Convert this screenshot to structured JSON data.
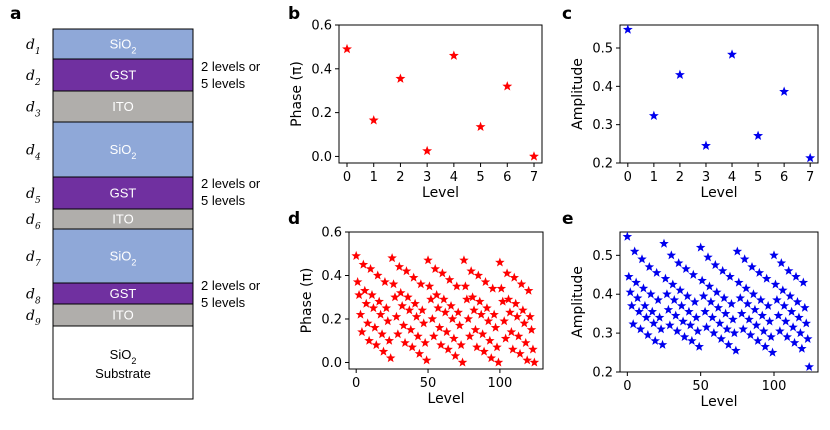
{
  "panels": {
    "a": "a",
    "b": "b",
    "c": "c",
    "d": "d",
    "e": "e"
  },
  "stack": {
    "layers": [
      {
        "d": "d",
        "sub": "1",
        "name": "SiO",
        "name_sub": "2",
        "color": "#8fa8d8",
        "text_color": "#ffffff"
      },
      {
        "d": "d",
        "sub": "2",
        "name": "GST",
        "name_sub": "",
        "color": "#7030a0",
        "text_color": "#ffffff"
      },
      {
        "d": "d",
        "sub": "3",
        "name": "ITO",
        "name_sub": "",
        "color": "#b0aeab",
        "text_color": "#ffffff"
      },
      {
        "d": "d",
        "sub": "4",
        "name": "SiO",
        "name_sub": "2",
        "color": "#8fa8d8",
        "text_color": "#ffffff"
      },
      {
        "d": "d",
        "sub": "5",
        "name": "GST",
        "name_sub": "",
        "color": "#7030a0",
        "text_color": "#ffffff"
      },
      {
        "d": "d",
        "sub": "6",
        "name": "ITO",
        "name_sub": "",
        "color": "#b0aeab",
        "text_color": "#ffffff"
      },
      {
        "d": "d",
        "sub": "7",
        "name": "SiO",
        "name_sub": "2",
        "color": "#8fa8d8",
        "text_color": "#ffffff"
      },
      {
        "d": "d",
        "sub": "8",
        "name": "GST",
        "name_sub": "",
        "color": "#7030a0",
        "text_color": "#ffffff"
      },
      {
        "d": "d",
        "sub": "9",
        "name": "ITO",
        "name_sub": "",
        "color": "#b0aeab",
        "text_color": "#ffffff"
      }
    ],
    "substrate": {
      "line1": "SiO",
      "line1_sub": "2",
      "line2": "Substrate"
    },
    "notes": [
      "2 levels or",
      "5 levels"
    ]
  },
  "chart_data": [
    {
      "id": "b",
      "type": "scatter",
      "marker": "star",
      "color": "#ff0000",
      "xlabel": "Level",
      "ylabel": "Phase (π)",
      "xlim": [
        -0.3,
        7.3
      ],
      "ylim": [
        -0.03,
        0.6
      ],
      "xticks": [
        0,
        1,
        2,
        3,
        4,
        5,
        6,
        7
      ],
      "yticks": [
        0.0,
        0.2,
        0.4,
        0.6
      ],
      "ytick_labels": [
        "0.0",
        "0.2",
        "0.4",
        "0.6"
      ],
      "x": [
        0,
        1,
        2,
        3,
        4,
        5,
        6,
        7
      ],
      "y": [
        0.49,
        0.165,
        0.355,
        0.025,
        0.46,
        0.135,
        0.32,
        0.0
      ]
    },
    {
      "id": "c",
      "type": "scatter",
      "marker": "star",
      "color": "#0000ee",
      "xlabel": "Level",
      "ylabel": "Amplitude",
      "xlim": [
        -0.3,
        7.3
      ],
      "ylim": [
        0.2,
        0.56
      ],
      "xticks": [
        0,
        1,
        2,
        3,
        4,
        5,
        6,
        7
      ],
      "yticks": [
        0.2,
        0.3,
        0.4,
        0.5
      ],
      "ytick_labels": [
        "0.2",
        "0.3",
        "0.4",
        "0.5"
      ],
      "x": [
        0,
        1,
        2,
        3,
        4,
        5,
        6,
        7
      ],
      "y": [
        0.548,
        0.323,
        0.43,
        0.245,
        0.483,
        0.271,
        0.386,
        0.213
      ]
    },
    {
      "id": "d",
      "type": "scatter",
      "marker": "star",
      "color": "#ff0000",
      "xlabel": "Level",
      "ylabel": "Phase (π)",
      "xlim": [
        -5,
        130
      ],
      "ylim": [
        -0.03,
        0.6
      ],
      "xticks": [
        0,
        50,
        100
      ],
      "yticks": [
        0.0,
        0.2,
        0.4,
        0.6
      ],
      "ytick_labels": [
        "0.0",
        "0.2",
        "0.4",
        "0.6"
      ],
      "x": [
        0,
        1,
        2,
        3,
        4,
        5,
        6,
        7,
        8,
        9,
        10,
        11,
        12,
        13,
        14,
        15,
        16,
        17,
        18,
        19,
        20,
        21,
        22,
        23,
        24,
        25,
        26,
        27,
        28,
        29,
        30,
        31,
        32,
        33,
        34,
        35,
        36,
        37,
        38,
        39,
        40,
        41,
        42,
        43,
        44,
        45,
        46,
        47,
        48,
        49,
        50,
        51,
        52,
        53,
        54,
        55,
        56,
        57,
        58,
        59,
        60,
        61,
        62,
        63,
        64,
        65,
        66,
        67,
        68,
        69,
        70,
        71,
        72,
        73,
        74,
        75,
        76,
        77,
        78,
        79,
        80,
        81,
        82,
        83,
        84,
        85,
        86,
        87,
        88,
        89,
        90,
        91,
        92,
        93,
        94,
        95,
        96,
        97,
        98,
        99,
        100,
        101,
        102,
        103,
        104,
        105,
        106,
        107,
        108,
        109,
        110,
        111,
        112,
        113,
        114,
        115,
        116,
        117,
        118,
        119,
        120,
        121,
        122,
        123,
        124
      ],
      "y": [
        0.49,
        0.37,
        0.31,
        0.22,
        0.14,
        0.45,
        0.33,
        0.27,
        0.18,
        0.1,
        0.43,
        0.31,
        0.25,
        0.16,
        0.08,
        0.4,
        0.28,
        0.22,
        0.13,
        0.05,
        0.37,
        0.25,
        0.19,
        0.1,
        0.02,
        0.48,
        0.36,
        0.3,
        0.21,
        0.13,
        0.44,
        0.32,
        0.26,
        0.17,
        0.09,
        0.42,
        0.3,
        0.24,
        0.15,
        0.07,
        0.39,
        0.27,
        0.21,
        0.12,
        0.04,
        0.36,
        0.24,
        0.18,
        0.09,
        0.01,
        0.47,
        0.35,
        0.29,
        0.2,
        0.12,
        0.43,
        0.31,
        0.25,
        0.16,
        0.08,
        0.41,
        0.29,
        0.23,
        0.14,
        0.06,
        0.38,
        0.26,
        0.2,
        0.11,
        0.03,
        0.35,
        0.23,
        0.17,
        0.08,
        0.0,
        0.47,
        0.35,
        0.29,
        0.2,
        0.12,
        0.42,
        0.3,
        0.24,
        0.15,
        0.07,
        0.4,
        0.28,
        0.22,
        0.13,
        0.05,
        0.37,
        0.25,
        0.19,
        0.1,
        0.02,
        0.34,
        0.22,
        0.16,
        0.07,
        0.0,
        0.46,
        0.34,
        0.28,
        0.19,
        0.11,
        0.41,
        0.29,
        0.23,
        0.14,
        0.06,
        0.39,
        0.27,
        0.21,
        0.12,
        0.04,
        0.36,
        0.24,
        0.18,
        0.09,
        0.01,
        0.33,
        0.21,
        0.15,
        0.06,
        0.0
      ]
    },
    {
      "id": "e",
      "type": "scatter",
      "marker": "star",
      "color": "#0000ee",
      "xlabel": "Level",
      "ylabel": "Amplitude",
      "xlim": [
        -5,
        130
      ],
      "ylim": [
        0.2,
        0.56
      ],
      "xticks": [
        0,
        50,
        100
      ],
      "yticks": [
        0.2,
        0.3,
        0.4,
        0.5
      ],
      "ytick_labels": [
        "0.2",
        "0.3",
        "0.4",
        "0.5"
      ],
      "x": [
        0,
        1,
        2,
        3,
        4,
        5,
        6,
        7,
        8,
        9,
        10,
        11,
        12,
        13,
        14,
        15,
        16,
        17,
        18,
        19,
        20,
        21,
        22,
        23,
        24,
        25,
        26,
        27,
        28,
        29,
        30,
        31,
        32,
        33,
        34,
        35,
        36,
        37,
        38,
        39,
        40,
        41,
        42,
        43,
        44,
        45,
        46,
        47,
        48,
        49,
        50,
        51,
        52,
        53,
        54,
        55,
        56,
        57,
        58,
        59,
        60,
        61,
        62,
        63,
        64,
        65,
        66,
        67,
        68,
        69,
        70,
        71,
        72,
        73,
        74,
        75,
        76,
        77,
        78,
        79,
        80,
        81,
        82,
        83,
        84,
        85,
        86,
        87,
        88,
        89,
        90,
        91,
        92,
        93,
        94,
        95,
        96,
        97,
        98,
        99,
        100,
        101,
        102,
        103,
        104,
        105,
        106,
        107,
        108,
        109,
        110,
        111,
        112,
        113,
        114,
        115,
        116,
        117,
        118,
        119,
        120,
        121,
        122,
        123,
        124
      ],
      "y": [
        0.548,
        0.445,
        0.405,
        0.37,
        0.323,
        0.51,
        0.43,
        0.39,
        0.355,
        0.31,
        0.49,
        0.415,
        0.37,
        0.34,
        0.295,
        0.47,
        0.4,
        0.355,
        0.325,
        0.28,
        0.455,
        0.385,
        0.34,
        0.31,
        0.27,
        0.53,
        0.44,
        0.4,
        0.36,
        0.32,
        0.5,
        0.425,
        0.385,
        0.345,
        0.305,
        0.48,
        0.41,
        0.37,
        0.33,
        0.29,
        0.465,
        0.395,
        0.355,
        0.32,
        0.28,
        0.45,
        0.38,
        0.34,
        0.305,
        0.265,
        0.52,
        0.435,
        0.395,
        0.355,
        0.315,
        0.495,
        0.42,
        0.38,
        0.34,
        0.3,
        0.475,
        0.405,
        0.365,
        0.325,
        0.285,
        0.46,
        0.39,
        0.35,
        0.31,
        0.27,
        0.445,
        0.375,
        0.335,
        0.3,
        0.255,
        0.51,
        0.43,
        0.39,
        0.35,
        0.31,
        0.49,
        0.415,
        0.375,
        0.335,
        0.295,
        0.47,
        0.4,
        0.36,
        0.32,
        0.28,
        0.455,
        0.385,
        0.345,
        0.305,
        0.265,
        0.44,
        0.37,
        0.33,
        0.29,
        0.25,
        0.5,
        0.425,
        0.385,
        0.345,
        0.305,
        0.48,
        0.41,
        0.37,
        0.33,
        0.29,
        0.46,
        0.395,
        0.355,
        0.315,
        0.275,
        0.445,
        0.38,
        0.34,
        0.3,
        0.26,
        0.43,
        0.365,
        0.325,
        0.285,
        0.213
      ]
    }
  ]
}
